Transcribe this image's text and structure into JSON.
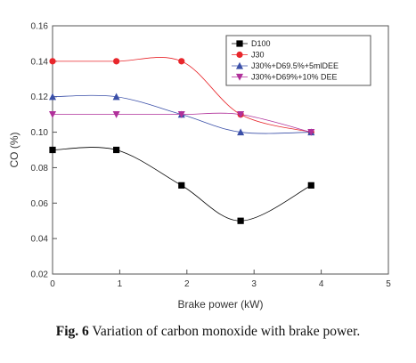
{
  "caption": {
    "label": "Fig. 6",
    "text": "Variation of carbon monoxide with brake power."
  },
  "chart_data": {
    "type": "line",
    "xlabel": "Brake power (kW)",
    "ylabel": "CO (%)",
    "xlim": [
      0,
      5
    ],
    "ylim": [
      0.02,
      0.16
    ],
    "xticks": [
      0,
      1,
      2,
      3,
      4,
      5
    ],
    "yticks": [
      0.02,
      0.04,
      0.06,
      0.08,
      0.1,
      0.12,
      0.14,
      0.16
    ],
    "ytick_labels": [
      "0.02",
      "0.04",
      "0.06",
      "0.08",
      "0.10",
      "0.12",
      "0.14",
      "0.16"
    ],
    "grid": false,
    "legend_position": "top-right",
    "series": [
      {
        "name": "D100",
        "color": "#000000",
        "marker": "square",
        "x": [
          0,
          0.95,
          1.92,
          2.8,
          3.85
        ],
        "y": [
          0.09,
          0.09,
          0.07,
          0.05,
          0.07
        ]
      },
      {
        "name": "J30",
        "color": "#e8262b",
        "marker": "circle",
        "x": [
          0,
          0.95,
          1.92,
          2.8,
          3.85
        ],
        "y": [
          0.14,
          0.14,
          0.14,
          0.11,
          0.1
        ]
      },
      {
        "name": "J30%+D69.5%+5mlDEE",
        "color": "#3a4fa8",
        "marker": "triangle-up",
        "x": [
          0,
          0.95,
          1.92,
          2.8,
          3.85
        ],
        "y": [
          0.12,
          0.12,
          0.11,
          0.1,
          0.1
        ]
      },
      {
        "name": "J30%+D69%+10% DEE",
        "color": "#b0309a",
        "marker": "triangle-down",
        "x": [
          0,
          0.95,
          1.92,
          2.8,
          3.85
        ],
        "y": [
          0.11,
          0.11,
          0.11,
          0.11,
          0.1
        ]
      }
    ]
  }
}
